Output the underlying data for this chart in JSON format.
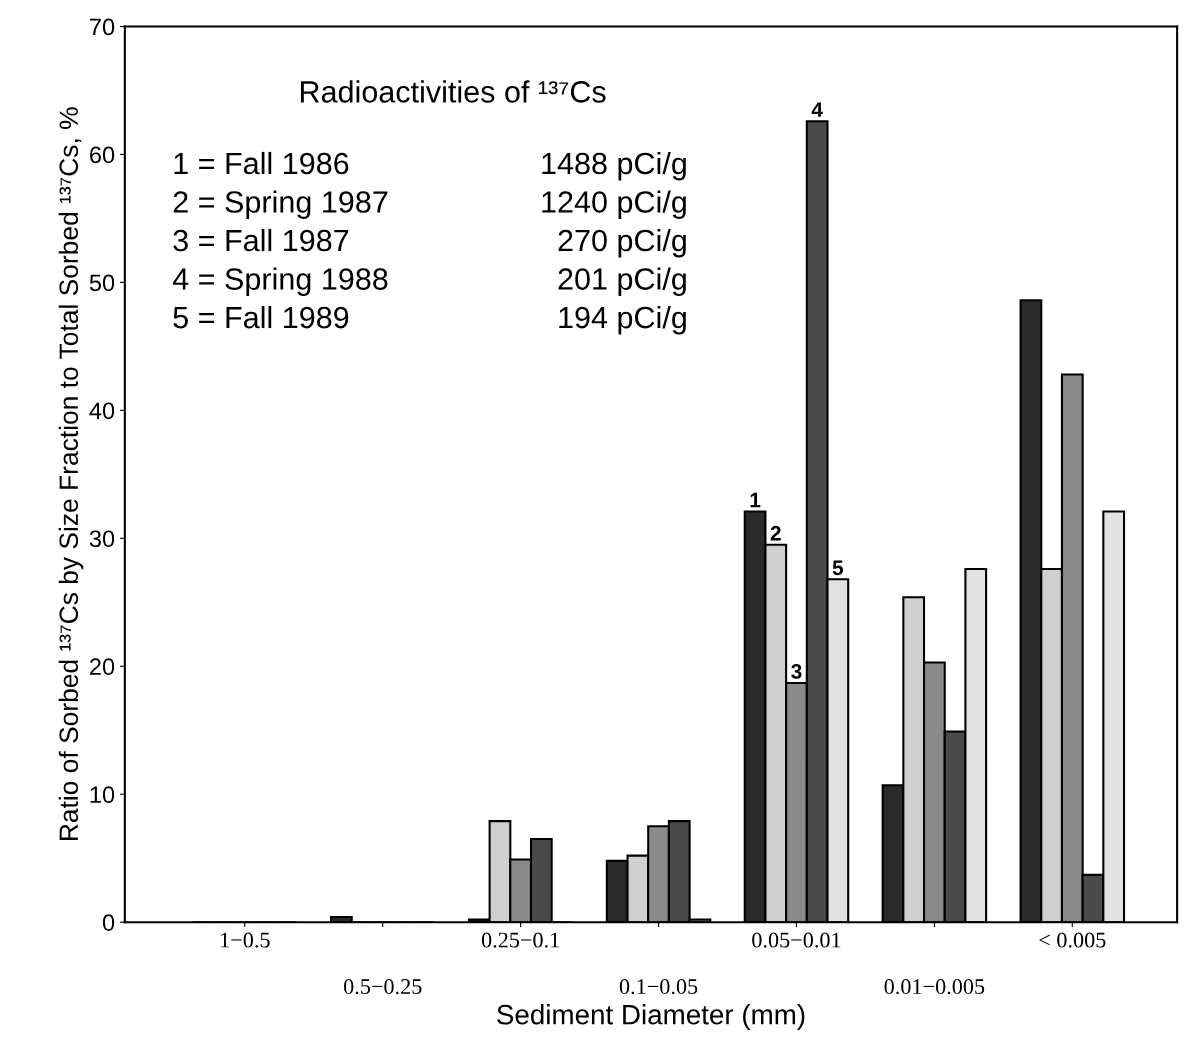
{
  "chart_data": {
    "type": "bar",
    "xlabel": "Sediment Diameter (mm)",
    "ylabel": "Ratio of Sorbed ¹³⁷Cs by Size Fraction to Total Sorbed ¹³⁷Cs, %",
    "categories": [
      "1−0.5",
      "0.5−0.25",
      "0.25−0.1",
      "0.1−0.05",
      "0.05−0.01",
      "0.01−0.005",
      "< 0.005"
    ],
    "series": [
      {
        "name": "1",
        "color": "#2a2a2a",
        "values": [
          0,
          0.4,
          0.2,
          4.8,
          32.1,
          10.7,
          48.6
        ]
      },
      {
        "name": "2",
        "color": "#cfcfcf",
        "values": [
          0,
          0,
          7.9,
          5.2,
          29.5,
          25.4,
          27.6
        ]
      },
      {
        "name": "3",
        "color": "#8a8a8a",
        "values": [
          0,
          0,
          4.9,
          7.5,
          18.7,
          20.3,
          42.8
        ]
      },
      {
        "name": "4",
        "color": "#4a4a4a",
        "values": [
          0,
          0,
          6.5,
          7.9,
          62.6,
          14.9,
          3.7
        ]
      },
      {
        "name": "5",
        "color": "#e2e2e2",
        "values": [
          0,
          0,
          0,
          0.2,
          26.8,
          27.6,
          32.1
        ]
      }
    ],
    "ylim": [
      0,
      70
    ],
    "yticks": [
      0,
      10,
      20,
      30,
      40,
      50,
      60,
      70
    ],
    "grid": false,
    "legend": false,
    "annotations": [
      "Radioactivities of ¹³⁷Cs",
      "1 = Fall 1986",
      "1488 pCi/g",
      "2 = Spring 1987",
      "1240 pCi/g",
      "3 = Fall 1987",
      "270 pCi/g",
      "4 = Spring 1988",
      "201 pCi/g",
      "5 = Fall 1989",
      "194 pCi/g"
    ]
  }
}
